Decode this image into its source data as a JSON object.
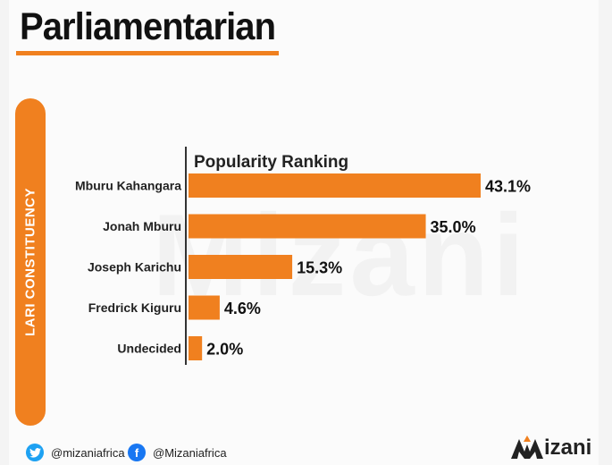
{
  "page": {
    "title": "Parliamentarian",
    "side_label": "LARI CONSTITUENCY",
    "watermark": "Mizani"
  },
  "footer": {
    "twitter_icon": "twitter-bird-icon",
    "twitter_handle": "@mizaniafrica",
    "facebook_icon": "facebook-f-icon",
    "facebook_handle": "@Mizaniafrica",
    "logo_text": "izani"
  },
  "colors": {
    "accent": "#f0801f",
    "twitter": "#1da1f2",
    "facebook": "#1877f2"
  },
  "chart_data": {
    "type": "bar",
    "orientation": "horizontal",
    "title": "Popularity Ranking",
    "categories": [
      "Mburu Kahangara",
      "Jonah Mburu",
      "Joseph Karichu",
      "Fredrick Kiguru",
      "Undecided"
    ],
    "values": [
      43.1,
      35.0,
      15.3,
      4.6,
      2.0
    ],
    "value_labels": [
      "43.1%",
      "35.0%",
      "15.3%",
      "4.6%",
      "2.0%"
    ],
    "unit": "%",
    "xlim": [
      0,
      43.1
    ],
    "grid": false,
    "legend": "none"
  }
}
